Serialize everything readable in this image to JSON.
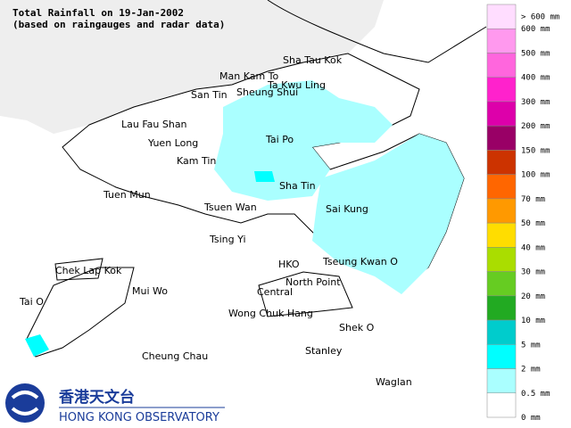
{
  "header": {
    "title": "Total Rainfall on 19-Jan-2002",
    "subtitle": "(based on raingauges and radar data)"
  },
  "places": [
    "Sha Tau Kok",
    "Man Kam To",
    "Ta Kwu Ling",
    "San Tin",
    "Sheung Shui",
    "Lau Fau Shan",
    "Yuen Long",
    "Tai Po",
    "Kam Tin",
    "Tuen Mun",
    "Sha Tin",
    "Tsuen Wan",
    "Sai Kung",
    "Tsing Yi",
    "Chek Lap Kok",
    "HKO",
    "Tseung Kwan O",
    "North Point",
    "Mui Wo",
    "Central",
    "Tai O",
    "Wong Chuk Hang",
    "Shek O",
    "Cheung Chau",
    "Stanley",
    "Waglan"
  ],
  "legend": {
    "labels": [
      "> 600 mm",
      "600 mm",
      "500 mm",
      "400 mm",
      "300 mm",
      "200 mm",
      "150 mm",
      "100 mm",
      "70 mm",
      "50 mm",
      "40 mm",
      "30 mm",
      "20 mm",
      "10 mm",
      "5 mm",
      "2 mm",
      "0.5 mm",
      "0 mm"
    ],
    "colors": [
      "#ffddff",
      "#ff99ee",
      "#ff66dd",
      "#ff22cc",
      "#dd00aa",
      "#990066",
      "#cc3300",
      "#ff6600",
      "#ff9900",
      "#ffdd00",
      "#aadd00",
      "#66cc22",
      "#22aa22",
      "#00cccc",
      "#00ffff",
      "#aaffff",
      "#ffffff"
    ]
  },
  "logo": {
    "chinese": "香港天文台",
    "english": "Hong Kong Observatory"
  }
}
